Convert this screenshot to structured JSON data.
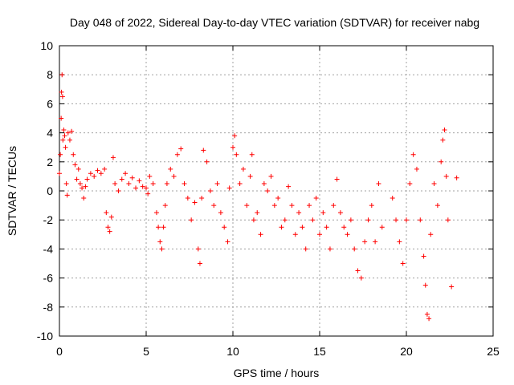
{
  "chart_data": {
    "type": "scatter",
    "title": "Day 048 of 2022, Sidereal Day-to-day VTEC variation (SDTVAR) for receiver nabg",
    "xlabel": "GPS time / hours",
    "ylabel": "SDTVAR / TECUs",
    "xlim": [
      0,
      25
    ],
    "ylim": [
      -10,
      10
    ],
    "xticks": [
      0,
      5,
      10,
      15,
      20,
      25
    ],
    "yticks": [
      -10,
      -8,
      -6,
      -4,
      -2,
      0,
      2,
      4,
      6,
      8,
      10
    ],
    "grid": true,
    "marker": "+",
    "series": [
      {
        "name": "SDTVAR",
        "color": "#ff0000",
        "points": [
          [
            0.0,
            1.2
          ],
          [
            0.05,
            2.5
          ],
          [
            0.1,
            5.0
          ],
          [
            0.12,
            6.8
          ],
          [
            0.15,
            8.0
          ],
          [
            0.18,
            6.5
          ],
          [
            0.2,
            3.5
          ],
          [
            0.25,
            4.2
          ],
          [
            0.3,
            3.8
          ],
          [
            0.35,
            3.0
          ],
          [
            0.4,
            0.5
          ],
          [
            0.45,
            -0.3
          ],
          [
            0.5,
            4.0
          ],
          [
            0.6,
            3.5
          ],
          [
            0.7,
            4.1
          ],
          [
            0.8,
            2.5
          ],
          [
            0.9,
            1.8
          ],
          [
            1.0,
            0.8
          ],
          [
            1.1,
            1.5
          ],
          [
            1.2,
            0.5
          ],
          [
            1.3,
            0.2
          ],
          [
            1.4,
            -0.5
          ],
          [
            1.5,
            0.3
          ],
          [
            1.6,
            0.8
          ],
          [
            1.8,
            1.2
          ],
          [
            2.0,
            1.0
          ],
          [
            2.2,
            1.4
          ],
          [
            2.4,
            1.2
          ],
          [
            2.6,
            1.5
          ],
          [
            2.7,
            -1.5
          ],
          [
            2.8,
            -2.5
          ],
          [
            2.9,
            -2.8
          ],
          [
            3.0,
            -1.8
          ],
          [
            3.1,
            2.3
          ],
          [
            3.2,
            0.5
          ],
          [
            3.4,
            0.0
          ],
          [
            3.6,
            0.8
          ],
          [
            3.8,
            1.2
          ],
          [
            4.0,
            0.5
          ],
          [
            4.2,
            0.9
          ],
          [
            4.4,
            0.2
          ],
          [
            4.6,
            0.7
          ],
          [
            4.8,
            0.3
          ],
          [
            5.0,
            0.2
          ],
          [
            5.1,
            -0.2
          ],
          [
            5.2,
            1.0
          ],
          [
            5.4,
            0.5
          ],
          [
            5.6,
            -1.5
          ],
          [
            5.7,
            -2.5
          ],
          [
            5.8,
            -3.5
          ],
          [
            5.9,
            -4.0
          ],
          [
            6.0,
            -2.5
          ],
          [
            6.1,
            -1.0
          ],
          [
            6.2,
            0.5
          ],
          [
            6.4,
            1.5
          ],
          [
            6.6,
            1.0
          ],
          [
            6.8,
            2.5
          ],
          [
            7.0,
            2.9
          ],
          [
            7.2,
            0.5
          ],
          [
            7.4,
            -0.5
          ],
          [
            7.6,
            -2.0
          ],
          [
            7.8,
            -0.8
          ],
          [
            8.0,
            -4.0
          ],
          [
            8.1,
            -5.0
          ],
          [
            8.2,
            -0.5
          ],
          [
            8.3,
            2.8
          ],
          [
            8.5,
            2.0
          ],
          [
            8.7,
            0.0
          ],
          [
            8.9,
            -1.0
          ],
          [
            9.1,
            0.5
          ],
          [
            9.3,
            -1.5
          ],
          [
            9.5,
            -2.5
          ],
          [
            9.7,
            -3.5
          ],
          [
            9.8,
            0.2
          ],
          [
            10.0,
            3.0
          ],
          [
            10.1,
            3.8
          ],
          [
            10.2,
            2.5
          ],
          [
            10.4,
            0.5
          ],
          [
            10.6,
            1.5
          ],
          [
            10.8,
            -1.0
          ],
          [
            11.0,
            1.0
          ],
          [
            11.1,
            2.5
          ],
          [
            11.2,
            -2.0
          ],
          [
            11.4,
            -1.5
          ],
          [
            11.6,
            -3.0
          ],
          [
            11.8,
            0.5
          ],
          [
            12.0,
            0.0
          ],
          [
            12.2,
            1.0
          ],
          [
            12.4,
            -1.0
          ],
          [
            12.6,
            -0.5
          ],
          [
            12.8,
            -2.5
          ],
          [
            13.0,
            -2.0
          ],
          [
            13.2,
            0.3
          ],
          [
            13.4,
            -1.0
          ],
          [
            13.6,
            -3.0
          ],
          [
            13.8,
            -1.5
          ],
          [
            14.0,
            -2.5
          ],
          [
            14.2,
            -4.0
          ],
          [
            14.4,
            -1.0
          ],
          [
            14.6,
            -2.0
          ],
          [
            14.8,
            -0.5
          ],
          [
            15.0,
            -3.0
          ],
          [
            15.2,
            -1.5
          ],
          [
            15.4,
            -2.5
          ],
          [
            15.6,
            -4.0
          ],
          [
            15.8,
            -1.0
          ],
          [
            16.0,
            0.8
          ],
          [
            16.2,
            -1.5
          ],
          [
            16.4,
            -2.5
          ],
          [
            16.6,
            -3.0
          ],
          [
            16.8,
            -2.0
          ],
          [
            17.0,
            -4.0
          ],
          [
            17.2,
            -5.5
          ],
          [
            17.4,
            -6.0
          ],
          [
            17.6,
            -3.5
          ],
          [
            17.8,
            -2.0
          ],
          [
            18.0,
            -1.0
          ],
          [
            18.2,
            -3.5
          ],
          [
            18.4,
            0.5
          ],
          [
            18.6,
            -2.5
          ],
          [
            19.2,
            -0.5
          ],
          [
            19.4,
            -2.0
          ],
          [
            19.6,
            -3.5
          ],
          [
            19.8,
            -5.0
          ],
          [
            20.0,
            -2.0
          ],
          [
            20.2,
            0.5
          ],
          [
            20.4,
            2.5
          ],
          [
            20.6,
            1.5
          ],
          [
            20.8,
            -2.0
          ],
          [
            21.0,
            -4.5
          ],
          [
            21.1,
            -6.5
          ],
          [
            21.2,
            -8.5
          ],
          [
            21.3,
            -8.8
          ],
          [
            21.4,
            -3.0
          ],
          [
            21.6,
            0.5
          ],
          [
            21.8,
            -1.0
          ],
          [
            22.0,
            2.0
          ],
          [
            22.1,
            3.5
          ],
          [
            22.2,
            4.2
          ],
          [
            22.3,
            1.0
          ],
          [
            22.4,
            -2.0
          ],
          [
            22.6,
            -6.6
          ],
          [
            22.9,
            0.9
          ]
        ]
      }
    ]
  }
}
